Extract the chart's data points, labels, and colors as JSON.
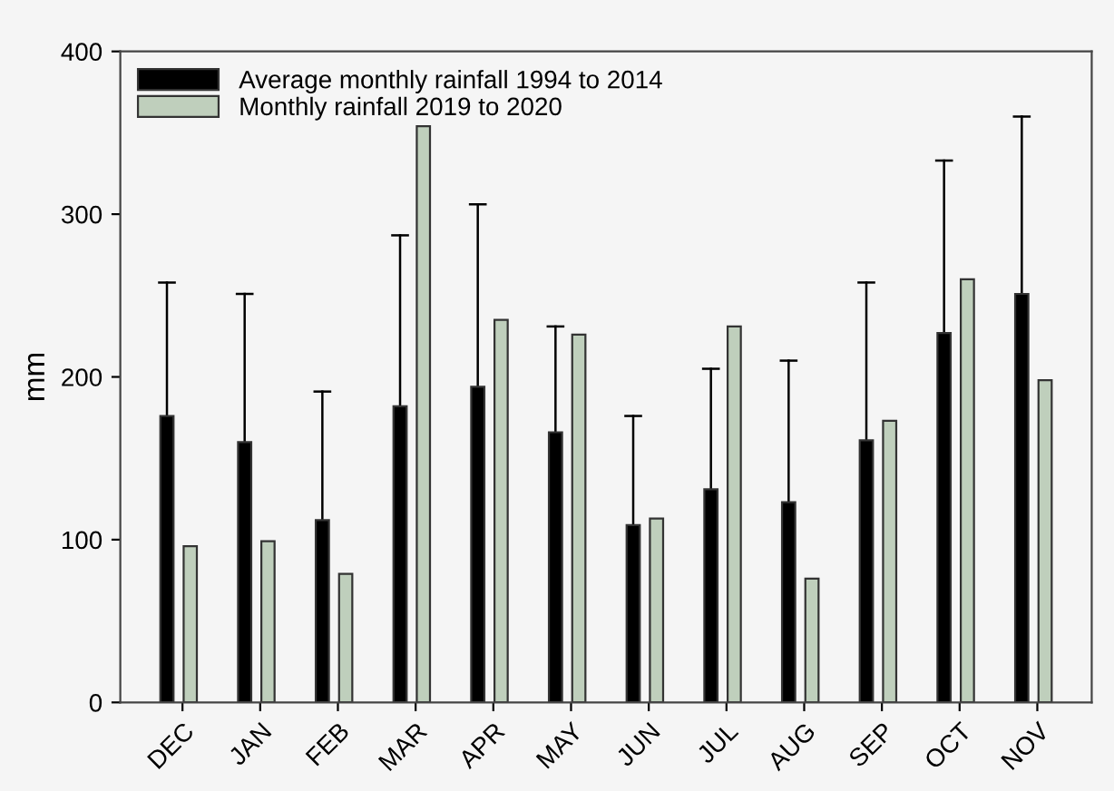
{
  "chart_data": {
    "type": "bar",
    "ylabel": "mm",
    "categories": [
      "DEC",
      "JAN",
      "FEB",
      "MAR",
      "APR",
      "MAY",
      "JUN",
      "JUL",
      "AUG",
      "SEP",
      "OCT",
      "NOV"
    ],
    "series": [
      {
        "name": "Average monthly rainfall 1994 to 2014",
        "color": "#000000",
        "values": [
          176,
          160,
          112,
          182,
          194,
          166,
          109,
          131,
          123,
          161,
          227,
          251
        ],
        "errors": [
          [
            176,
            258
          ],
          [
            160,
            251
          ],
          [
            112,
            191
          ],
          [
            182,
            287
          ],
          [
            194,
            306
          ],
          [
            166,
            231
          ],
          [
            109,
            176
          ],
          [
            131,
            205
          ],
          [
            123,
            210
          ],
          [
            161,
            258
          ],
          [
            227,
            333
          ],
          [
            251,
            360
          ]
        ]
      },
      {
        "name": "Monthly rainfall 2019 to 2020",
        "color": "#bfcfbc",
        "values": [
          96,
          99,
          79,
          354,
          235,
          226,
          113,
          231,
          76,
          173,
          260,
          198
        ]
      }
    ],
    "ylim": [
      0,
      400
    ],
    "yticks": [
      0,
      100,
      200,
      300,
      400
    ],
    "grid": false,
    "legend": "top left"
  }
}
